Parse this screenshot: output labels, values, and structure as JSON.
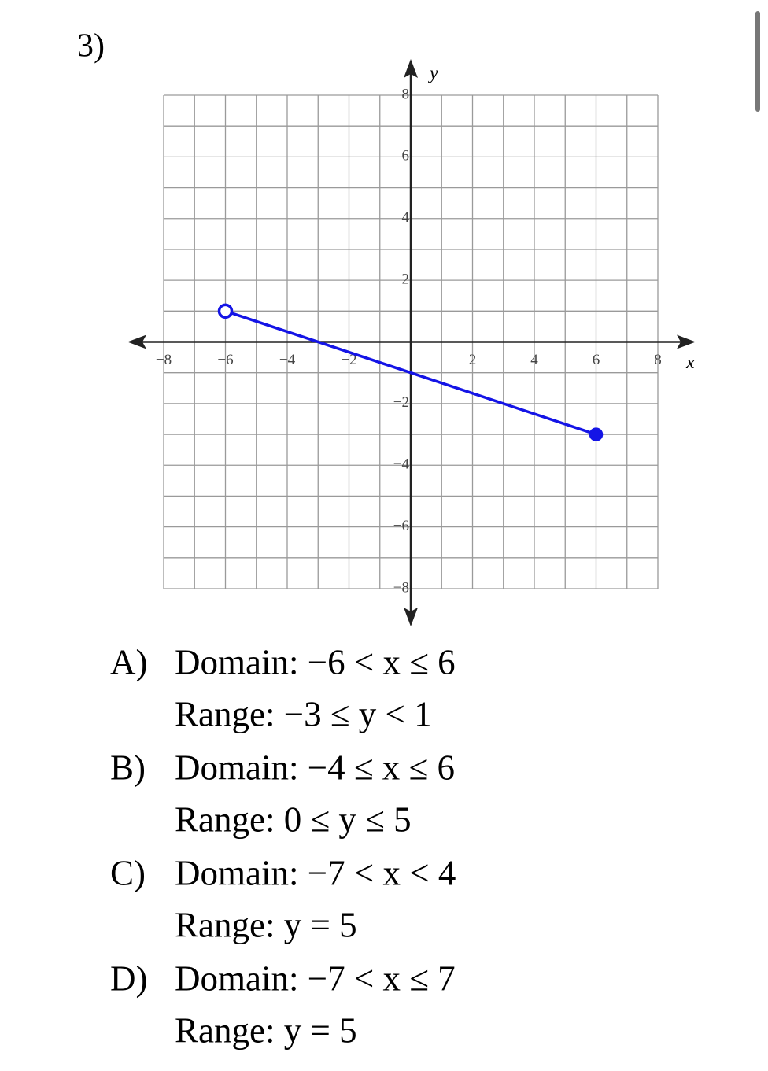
{
  "question_number": "3)",
  "chart_data": {
    "type": "line",
    "x_label": "x",
    "y_label": "y",
    "x": [
      -6,
      6
    ],
    "series": [
      {
        "color": "#1414e6",
        "values": [
          1,
          -3
        ],
        "markers": [
          "open",
          "closed"
        ]
      }
    ],
    "xlim": [
      -8,
      8
    ],
    "ylim": [
      -8,
      8
    ],
    "xticks": [
      {
        "value": -8,
        "label": "−8"
      },
      {
        "value": -6,
        "label": "−6"
      },
      {
        "value": -4,
        "label": "−4"
      },
      {
        "value": -2,
        "label": "−2"
      },
      2,
      4,
      6,
      8
    ],
    "yticks": [
      8,
      6,
      4,
      2,
      {
        "value": -2,
        "label": "−2"
      },
      {
        "value": -4,
        "label": "−4"
      },
      {
        "value": -6,
        "label": "−6"
      },
      {
        "value": -8,
        "label": "−8"
      }
    ],
    "grid": true
  },
  "choices": [
    {
      "letter": "A)",
      "domain": "Domain: −6 < x ≤ 6",
      "range": "Range: −3 ≤ y < 1"
    },
    {
      "letter": "B)",
      "domain": "Domain: −4 ≤ x ≤ 6",
      "range": "Range: 0 ≤ y ≤ 5"
    },
    {
      "letter": "C)",
      "domain": "Domain: −7 < x < 4",
      "range": "Range: y = 5"
    },
    {
      "letter": "D)",
      "domain": "Domain: −7 < x ≤ 7",
      "range": "Range: y = 5"
    }
  ]
}
